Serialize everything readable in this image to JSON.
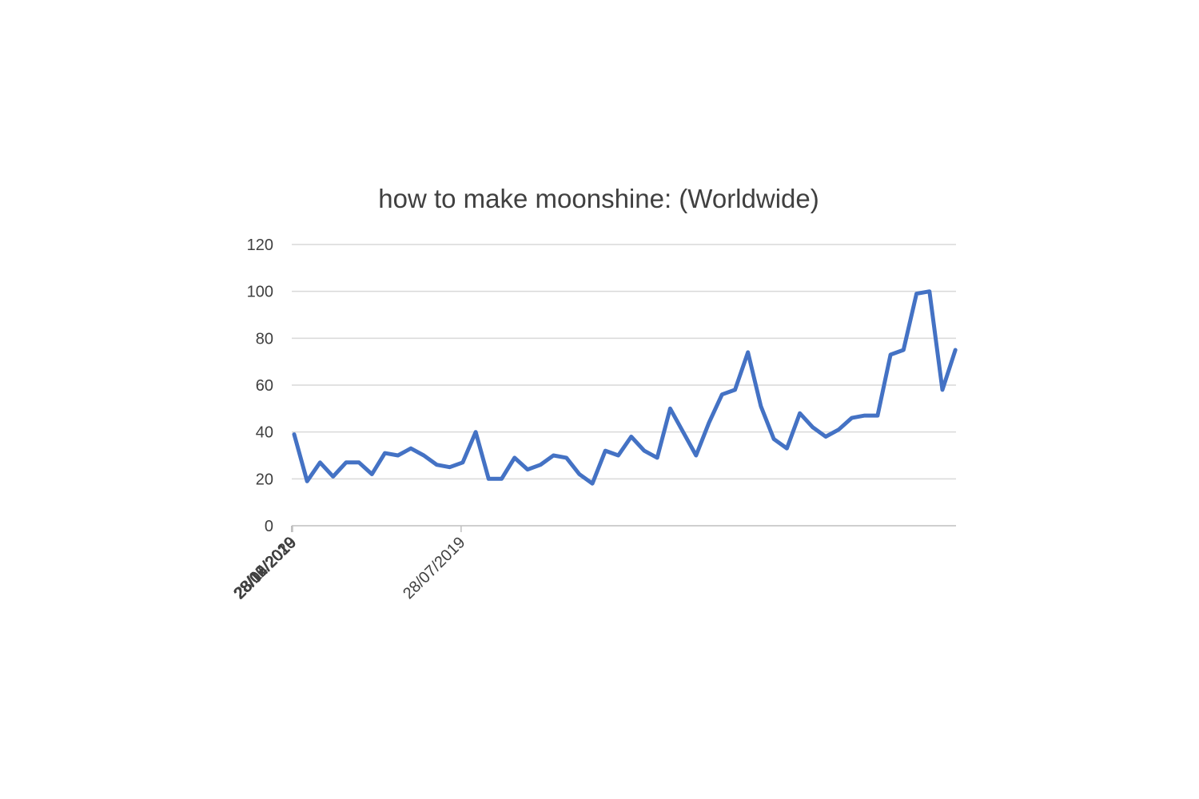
{
  "chart_data": {
    "type": "line",
    "title": "how to make moonshine: (Worldwide)",
    "xlabel": "",
    "ylabel": "",
    "ylim": [
      0,
      120
    ],
    "yticks": [
      0,
      20,
      40,
      60,
      80,
      100,
      120
    ],
    "grid": true,
    "x_tick_labels": [
      "28/04/2019",
      "28/05/2019",
      "28/06/2019",
      "28/07/2019",
      "28/08/2019",
      "28/09/2019",
      "28/10/2019",
      "28/11/2019",
      "28/12/2019",
      "28/01/2020",
      "28/02/2020",
      "28/03/2020"
    ],
    "series": [
      {
        "color": "#4472c4",
        "x": [
          "28/04/2019",
          "05/05/2019",
          "12/05/2019",
          "19/05/2019",
          "26/05/2019",
          "02/06/2019",
          "09/06/2019",
          "16/06/2019",
          "23/06/2019",
          "30/06/2019",
          "07/07/2019",
          "14/07/2019",
          "21/07/2019",
          "28/07/2019",
          "04/08/2019",
          "11/08/2019",
          "18/08/2019",
          "25/08/2019",
          "01/09/2019",
          "08/09/2019",
          "15/09/2019",
          "22/09/2019",
          "29/09/2019",
          "06/10/2019",
          "13/10/2019",
          "20/10/2019",
          "27/10/2019",
          "03/11/2019",
          "10/11/2019",
          "17/11/2019",
          "24/11/2019",
          "01/12/2019",
          "08/12/2019",
          "15/12/2019",
          "22/12/2019",
          "29/12/2019",
          "05/01/2020",
          "12/01/2020",
          "19/01/2020",
          "26/01/2020",
          "02/02/2020",
          "09/02/2020",
          "16/02/2020",
          "23/02/2020",
          "01/03/2020",
          "08/03/2020",
          "15/03/2020",
          "22/03/2020",
          "29/03/2020",
          "05/04/2020",
          "12/04/2020",
          "19/04/2020"
        ],
        "values": [
          39,
          19,
          27,
          21,
          27,
          27,
          22,
          31,
          30,
          33,
          30,
          26,
          25,
          27,
          40,
          20,
          20,
          29,
          24,
          26,
          30,
          29,
          22,
          18,
          32,
          30,
          38,
          32,
          29,
          50,
          40,
          30,
          44,
          56,
          58,
          74,
          51,
          37,
          33,
          48,
          42,
          38,
          41,
          46,
          47,
          47,
          73,
          75,
          99,
          100,
          58,
          75
        ]
      }
    ]
  }
}
